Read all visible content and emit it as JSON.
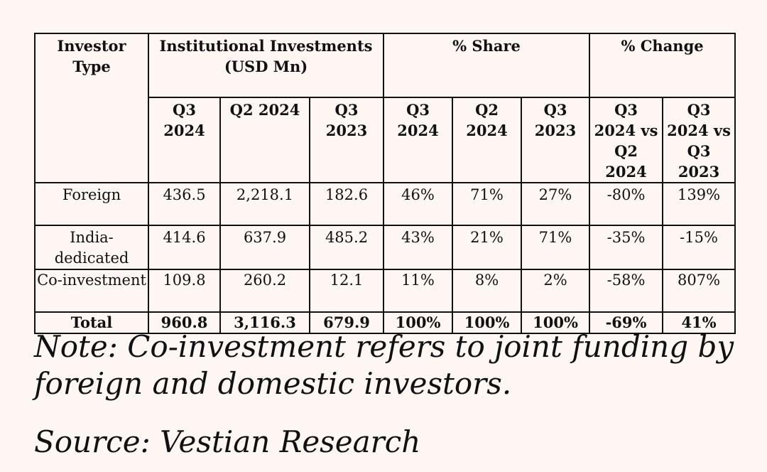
{
  "table": {
    "header": {
      "investor_type": "Investor Type",
      "group_investments": "Institutional Investments (USD Mn)",
      "group_share": "% Share",
      "group_change": "% Change",
      "sub": [
        "Q3 2024",
        "Q2 2024",
        "Q3 2023",
        "Q3 2024",
        "Q2 2024",
        "Q3 2023",
        "Q3 2024 vs Q2 2024",
        "Q3 2024 vs Q3 2023"
      ]
    },
    "rows": [
      {
        "type": "Foreign",
        "values": [
          "436.5",
          "2,218.1",
          "182.6",
          "46%",
          "71%",
          "27%",
          "-80%",
          "139%"
        ]
      },
      {
        "type": "India-dedicated",
        "values": [
          "414.6",
          "637.9",
          "485.2",
          "43%",
          "21%",
          "71%",
          "-35%",
          "-15%"
        ]
      },
      {
        "type": "Co-investment",
        "values": [
          "109.8",
          "260.2",
          "12.1",
          "11%",
          "8%",
          "2%",
          "-58%",
          "807%"
        ]
      }
    ],
    "total": {
      "type": "Total",
      "values": [
        "960.8",
        "3,116.3",
        "679.9",
        "100%",
        "100%",
        "100%",
        "-69%",
        "41%"
      ]
    }
  },
  "note": "Note: Co-investment refers to joint funding by foreign and domestic investors.",
  "source": "Source: Vestian Research",
  "colors": {
    "background": "#fdf6f3",
    "text": "#111111",
    "border": "#111111"
  }
}
